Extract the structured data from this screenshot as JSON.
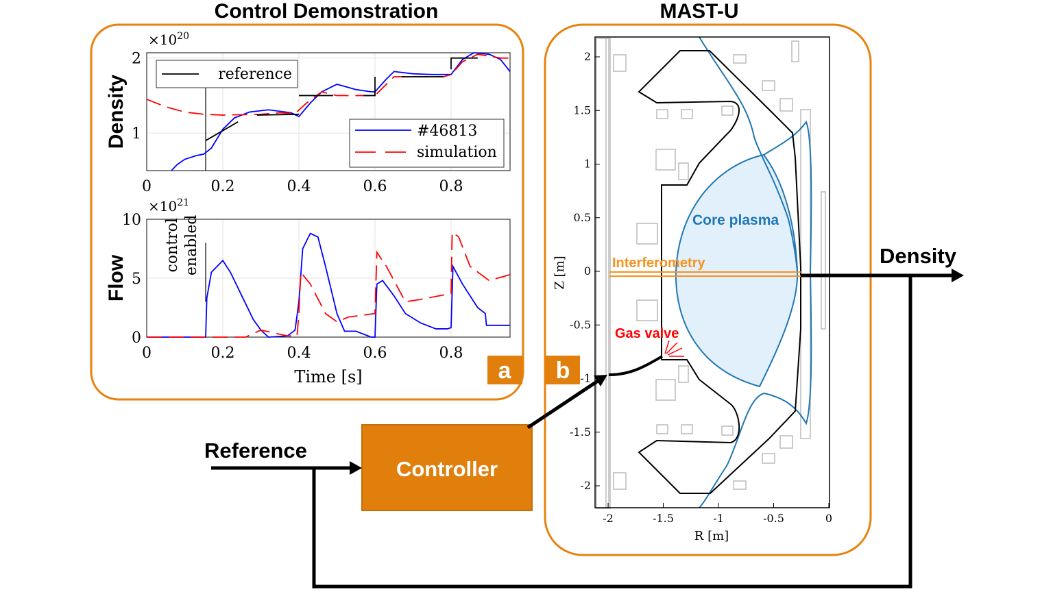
{
  "panel_a": {
    "title": "Control Demonstration",
    "label": "a",
    "border_color": "#E8820C"
  },
  "panel_b": {
    "title": "MAST-U",
    "label": "b",
    "xlabel": "R [m]",
    "ylabel": "Z [m]",
    "xticks": [
      "-2",
      "-1.5",
      "-1",
      "-0.5",
      "0"
    ],
    "yticks": [
      "2",
      "1.5",
      "1",
      "0.5",
      "0",
      "-0.5",
      "-1",
      "-1.5",
      "-2"
    ],
    "annotations": {
      "core": "Core plasma",
      "interferometry": "Interferometry",
      "gas_valve": "Gas valve"
    },
    "colors": {
      "core": "#1F77B4",
      "core_fill": "#E2F0FC",
      "interferometry": "#F7921E",
      "gas_valve": "#FF0000"
    }
  },
  "diagram": {
    "reference_label": "Reference",
    "controller_label": "Controller",
    "density_label": "Density",
    "controller_color": "#E07F0C"
  },
  "chart_data": [
    {
      "type": "line",
      "ylabel": "Density",
      "exponent": "×10",
      "exponent_power": "20",
      "xlim": [
        0,
        0.955
      ],
      "ylim": [
        0.5,
        2.07
      ],
      "xticks": [
        "0",
        "0.2",
        "0.4",
        "0.6",
        "0.8"
      ],
      "yticks": [
        "1",
        "2"
      ],
      "grid": true,
      "legend": [
        "reference",
        "#46813",
        "simulation"
      ],
      "series": [
        {
          "name": "#46813",
          "color": "#0000FF",
          "style": "solid",
          "x": [
            0.065,
            0.08,
            0.1,
            0.13,
            0.15,
            0.17,
            0.2,
            0.23,
            0.27,
            0.32,
            0.38,
            0.4,
            0.43,
            0.46,
            0.5,
            0.55,
            0.59,
            0.6,
            0.63,
            0.65,
            0.7,
            0.75,
            0.8,
            0.83,
            0.86,
            0.9,
            0.93,
            0.955
          ],
          "y": [
            0.5,
            0.58,
            0.65,
            0.7,
            0.72,
            0.8,
            1.05,
            1.2,
            1.28,
            1.31,
            1.27,
            1.22,
            1.4,
            1.55,
            1.65,
            1.58,
            1.55,
            1.55,
            1.72,
            1.82,
            1.79,
            1.78,
            1.78,
            1.98,
            2.07,
            2.05,
            1.98,
            1.82
          ]
        },
        {
          "name": "simulation",
          "color": "#FF0000",
          "style": "dashed",
          "x": [
            0,
            0.05,
            0.1,
            0.15,
            0.2,
            0.3,
            0.35,
            0.39,
            0.42,
            0.46,
            0.5,
            0.55,
            0.6,
            0.65,
            0.7,
            0.78,
            0.8,
            0.83,
            0.87,
            0.93,
            0.955
          ],
          "y": [
            1.45,
            1.35,
            1.28,
            1.25,
            1.24,
            1.25,
            1.27,
            1.26,
            1.4,
            1.55,
            1.5,
            1.5,
            1.5,
            1.75,
            1.75,
            1.75,
            1.78,
            1.95,
            2.05,
            2.0,
            2.0
          ]
        },
        {
          "name": "reference",
          "color": "#000000",
          "style": "segments",
          "segments": [
            [
              [
                0.155,
                0.9
              ],
              [
                0.24,
                1.15
              ]
            ],
            [
              [
                0.29,
                1.24
              ],
              [
                0.4,
                1.25
              ]
            ],
            [
              [
                0.4,
                1.5
              ],
              [
                0.49,
                1.5
              ]
            ],
            [
              [
                0.57,
                1.5
              ],
              [
                0.6,
                1.5
              ],
              [
                0.6,
                1.75
              ]
            ],
            [
              [
                0.67,
                1.75
              ],
              [
                0.78,
                1.75
              ]
            ],
            [
              [
                0.8,
                1.85
              ],
              [
                0.8,
                2.0
              ],
              [
                0.87,
                2.0
              ]
            ]
          ]
        }
      ]
    },
    {
      "type": "line",
      "ylabel": "Flow",
      "xlabel": "Time [s]",
      "exponent": "×10",
      "exponent_power": "21",
      "xlim": [
        0,
        0.955
      ],
      "ylim": [
        0,
        10
      ],
      "xticks": [
        "0",
        "0.2",
        "0.4",
        "0.6",
        "0.8"
      ],
      "yticks": [
        "0",
        "5",
        "10"
      ],
      "grid": true,
      "annotation": [
        "control",
        "enabled"
      ],
      "series": [
        {
          "name": "#46813",
          "color": "#0000FF",
          "style": "solid",
          "x": [
            0,
            0.155,
            0.158,
            0.17,
            0.2,
            0.22,
            0.25,
            0.28,
            0.3,
            0.32,
            0.37,
            0.39,
            0.4,
            0.41,
            0.43,
            0.45,
            0.47,
            0.5,
            0.52,
            0.55,
            0.59,
            0.6,
            0.605,
            0.62,
            0.65,
            0.68,
            0.72,
            0.76,
            0.79,
            0.8,
            0.805,
            0.83,
            0.87,
            0.89,
            0.893,
            0.955
          ],
          "y": [
            0,
            0,
            3.3,
            5.5,
            6.5,
            5.5,
            3.5,
            1.5,
            0.6,
            0,
            0.1,
            0.6,
            3,
            7.5,
            8.8,
            8.5,
            6,
            2,
            0.5,
            0.5,
            0,
            0,
            4.5,
            4.8,
            3.5,
            2,
            1.2,
            0.7,
            0.7,
            0.8,
            6,
            4.5,
            2.5,
            2,
            1,
            1
          ]
        },
        {
          "name": "simulation",
          "color": "#FF0000",
          "style": "dashed",
          "x": [
            0,
            0.26,
            0.3,
            0.37,
            0.395,
            0.4,
            0.405,
            0.43,
            0.47,
            0.5,
            0.53,
            0.6,
            0.605,
            0.63,
            0.68,
            0.72,
            0.8,
            0.803,
            0.82,
            0.85,
            0.9,
            0.955
          ],
          "y": [
            0,
            0,
            0.6,
            0.1,
            0.1,
            2,
            5.5,
            4.5,
            2,
            1.3,
            1.7,
            2,
            7.2,
            6,
            3,
            3.2,
            3.7,
            8.9,
            8.5,
            6,
            4.8,
            5.3
          ]
        }
      ]
    }
  ]
}
